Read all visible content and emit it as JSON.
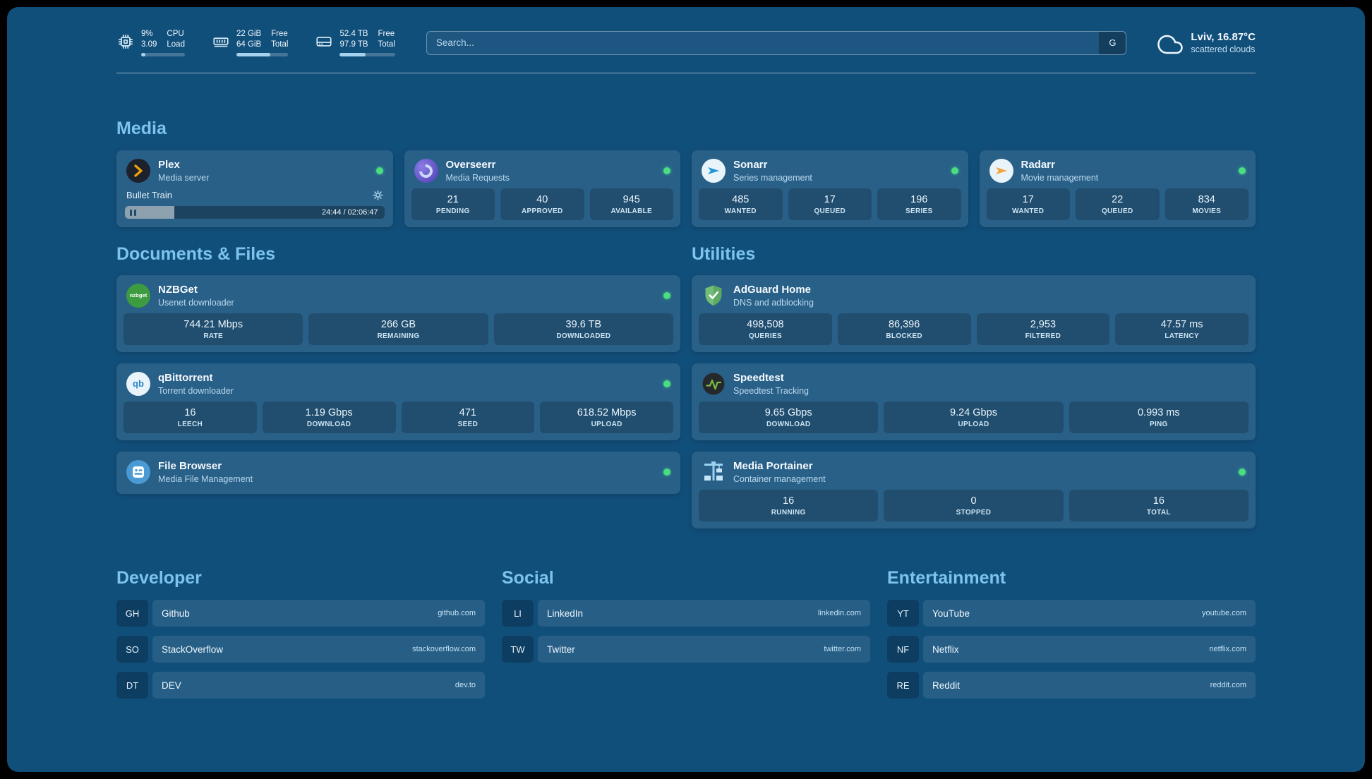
{
  "topbar": {
    "cpu": {
      "usage_percent": "9%",
      "load": "3.09",
      "label_top": "CPU",
      "label_bottom": "Load",
      "bar_percent": 9
    },
    "memory": {
      "free": "22 GiB",
      "total": "64 GiB",
      "label_top": "Free",
      "label_bottom": "Total",
      "bar_percent": 66
    },
    "disk": {
      "free": "52.4 TB",
      "total": "97.9 TB",
      "label_top": "Free",
      "label_bottom": "Total",
      "bar_percent": 47
    },
    "search": {
      "placeholder": "Search...",
      "provider_button": "G"
    },
    "weather": {
      "location": "Lviv, 16.87°C",
      "condition": "scattered clouds"
    }
  },
  "media": {
    "heading": "Media",
    "plex": {
      "title": "Plex",
      "subtitle": "Media server",
      "now_playing": "Bullet Train",
      "time": "24:44 / 02:06:47",
      "progress_percent": 19
    },
    "overseerr": {
      "title": "Overseerr",
      "subtitle": "Media Requests",
      "stats": [
        {
          "value": "21",
          "label": "PENDING"
        },
        {
          "value": "40",
          "label": "APPROVED"
        },
        {
          "value": "945",
          "label": "AVAILABLE"
        }
      ]
    },
    "sonarr": {
      "title": "Sonarr",
      "subtitle": "Series management",
      "stats": [
        {
          "value": "485",
          "label": "WANTED"
        },
        {
          "value": "17",
          "label": "QUEUED"
        },
        {
          "value": "196",
          "label": "SERIES"
        }
      ]
    },
    "radarr": {
      "title": "Radarr",
      "subtitle": "Movie management",
      "stats": [
        {
          "value": "17",
          "label": "WANTED"
        },
        {
          "value": "22",
          "label": "QUEUED"
        },
        {
          "value": "834",
          "label": "MOVIES"
        }
      ]
    }
  },
  "documents": {
    "heading": "Documents & Files",
    "nzbget": {
      "title": "NZBGet",
      "subtitle": "Usenet downloader",
      "icon_text": "nzbget",
      "stats": [
        {
          "value": "744.21 Mbps",
          "label": "RATE"
        },
        {
          "value": "266 GB",
          "label": "REMAINING"
        },
        {
          "value": "39.6 TB",
          "label": "DOWNLOADED"
        }
      ]
    },
    "qbittorrent": {
      "title": "qBittorrent",
      "subtitle": "Torrent downloader",
      "icon_text": "qb",
      "stats": [
        {
          "value": "16",
          "label": "LEECH"
        },
        {
          "value": "1.19 Gbps",
          "label": "DOWNLOAD"
        },
        {
          "value": "471",
          "label": "SEED"
        },
        {
          "value": "618.52 Mbps",
          "label": "UPLOAD"
        }
      ]
    },
    "filebrowser": {
      "title": "File Browser",
      "subtitle": "Media File Management"
    }
  },
  "utilities": {
    "heading": "Utilities",
    "adguard": {
      "title": "AdGuard Home",
      "subtitle": "DNS and adblocking",
      "stats": [
        {
          "value": "498,508",
          "label": "QUERIES"
        },
        {
          "value": "86,396",
          "label": "BLOCKED"
        },
        {
          "value": "2,953",
          "label": "FILTERED"
        },
        {
          "value": "47.57 ms",
          "label": "LATENCY"
        }
      ]
    },
    "speedtest": {
      "title": "Speedtest",
      "subtitle": "Speedtest Tracking",
      "stats": [
        {
          "value": "9.65 Gbps",
          "label": "DOWNLOAD"
        },
        {
          "value": "9.24 Gbps",
          "label": "UPLOAD"
        },
        {
          "value": "0.993 ms",
          "label": "PING"
        }
      ]
    },
    "portainer": {
      "title": "Media Portainer",
      "subtitle": "Container management",
      "stats": [
        {
          "value": "16",
          "label": "RUNNING"
        },
        {
          "value": "0",
          "label": "STOPPED"
        },
        {
          "value": "16",
          "label": "TOTAL"
        }
      ]
    }
  },
  "bookmarks": {
    "developer": {
      "heading": "Developer",
      "items": [
        {
          "abbr": "GH",
          "name": "Github",
          "url": "github.com"
        },
        {
          "abbr": "SO",
          "name": "StackOverflow",
          "url": "stackoverflow.com"
        },
        {
          "abbr": "DT",
          "name": "DEV",
          "url": "dev.to"
        }
      ]
    },
    "social": {
      "heading": "Social",
      "items": [
        {
          "abbr": "LI",
          "name": "LinkedIn",
          "url": "linkedin.com"
        },
        {
          "abbr": "TW",
          "name": "Twitter",
          "url": "twitter.com"
        }
      ]
    },
    "entertainment": {
      "heading": "Entertainment",
      "items": [
        {
          "abbr": "YT",
          "name": "YouTube",
          "url": "youtube.com"
        },
        {
          "abbr": "NF",
          "name": "Netflix",
          "url": "netflix.com"
        },
        {
          "abbr": "RE",
          "name": "Reddit",
          "url": "reddit.com"
        }
      ]
    }
  },
  "colors": {
    "background": "#114f7b",
    "heading": "#7cc4ec",
    "status_online": "#4ade80",
    "plex_accent": "#eda10d",
    "adguard_green": "#5da863",
    "speedtest_pulse": "#7bc043"
  },
  "icons": {
    "cpu": "chip-icon",
    "memory": "ram-icon",
    "disk": "hard-drive-icon",
    "weather": "cloud-icon",
    "plex": "plex-chevron-icon",
    "overseerr": "overseerr-swirl-icon",
    "sonarr": "sonarr-arrow-icon",
    "radarr": "radarr-arrow-icon",
    "nzbget": "nzbget-badge-icon",
    "qbittorrent": "qb-badge-icon",
    "filebrowser": "filebrowser-icon",
    "adguard": "shield-check-icon",
    "speedtest": "pulse-icon",
    "portainer": "crane-icon",
    "plex_settings": "gear-icon",
    "plex_playback": "pause-icon"
  }
}
